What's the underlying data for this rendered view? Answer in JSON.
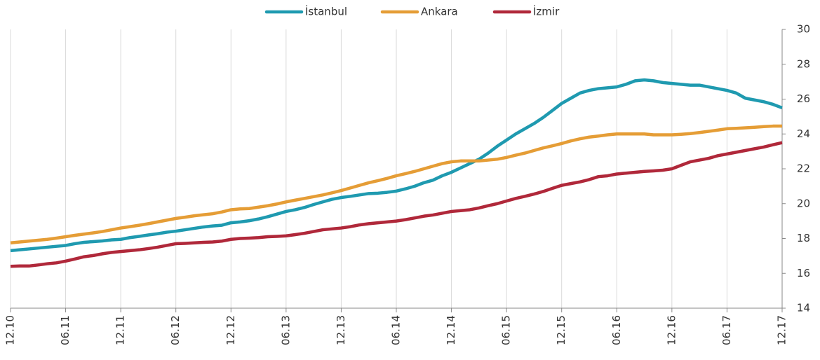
{
  "chart_data": {
    "type": "line",
    "categories": [
      "12.10",
      null,
      null,
      null,
      null,
      null,
      "06.11",
      null,
      null,
      null,
      null,
      null,
      "12.11",
      null,
      null,
      null,
      null,
      null,
      "06.12",
      null,
      null,
      null,
      null,
      null,
      "12.12",
      null,
      null,
      null,
      null,
      null,
      "06.13",
      null,
      null,
      null,
      null,
      null,
      "12.13",
      null,
      null,
      null,
      null,
      null,
      "06.14",
      null,
      null,
      null,
      null,
      null,
      "12.14",
      null,
      null,
      null,
      null,
      null,
      "06.15",
      null,
      null,
      null,
      null,
      null,
      "12.15",
      null,
      null,
      null,
      null,
      null,
      "06.16",
      null,
      null,
      null,
      null,
      null,
      "12.16",
      null,
      null,
      null,
      null,
      null,
      "06.17",
      null,
      null,
      null,
      null,
      null,
      "12.17"
    ],
    "series": [
      {
        "name": "İstanbul",
        "color": "#1f9ab0",
        "values": [
          17.3,
          17.35,
          17.4,
          17.45,
          17.5,
          17.55,
          17.6,
          17.7,
          17.78,
          17.82,
          17.86,
          17.92,
          17.95,
          18.05,
          18.12,
          18.2,
          18.27,
          18.36,
          18.42,
          18.5,
          18.58,
          18.66,
          18.72,
          18.76,
          18.9,
          18.95,
          19.02,
          19.12,
          19.25,
          19.4,
          19.55,
          19.65,
          19.78,
          19.95,
          20.1,
          20.25,
          20.35,
          20.42,
          20.5,
          20.58,
          20.6,
          20.65,
          20.72,
          20.85,
          21.0,
          21.2,
          21.35,
          21.6,
          21.8,
          22.05,
          22.3,
          22.55,
          22.9,
          23.3,
          23.65,
          24.0,
          24.3,
          24.6,
          24.95,
          25.35,
          25.75,
          26.05,
          26.35,
          26.5,
          26.6,
          26.65,
          26.7,
          26.85,
          27.05,
          27.1,
          27.05,
          26.95,
          26.9,
          26.85,
          26.8,
          26.8,
          26.7,
          26.6,
          26.5,
          26.35,
          26.05,
          25.95,
          25.85,
          25.7,
          25.5
        ]
      },
      {
        "name": "Ankara",
        "color": "#e59d36",
        "values": [
          17.75,
          17.8,
          17.85,
          17.9,
          17.95,
          18.02,
          18.1,
          18.18,
          18.25,
          18.32,
          18.4,
          18.5,
          18.6,
          18.68,
          18.76,
          18.85,
          18.95,
          19.05,
          19.15,
          19.22,
          19.3,
          19.36,
          19.42,
          19.52,
          19.65,
          19.7,
          19.72,
          19.8,
          19.88,
          19.98,
          20.1,
          20.2,
          20.3,
          20.4,
          20.5,
          20.62,
          20.75,
          20.9,
          21.05,
          21.2,
          21.32,
          21.45,
          21.6,
          21.72,
          21.85,
          22.0,
          22.15,
          22.3,
          22.4,
          22.45,
          22.45,
          22.45,
          22.5,
          22.55,
          22.65,
          22.78,
          22.9,
          23.05,
          23.2,
          23.32,
          23.45,
          23.6,
          23.72,
          23.82,
          23.88,
          23.95,
          24.0,
          24.0,
          24.0,
          24.0,
          23.95,
          23.95,
          23.95,
          23.98,
          24.02,
          24.08,
          24.15,
          24.22,
          24.3,
          24.32,
          24.35,
          24.38,
          24.42,
          24.45,
          24.45
        ]
      },
      {
        "name": "İzmir",
        "color": "#b0283a",
        "values": [
          16.4,
          16.42,
          16.42,
          16.48,
          16.55,
          16.6,
          16.7,
          16.82,
          16.95,
          17.02,
          17.12,
          17.2,
          17.25,
          17.3,
          17.35,
          17.42,
          17.5,
          17.6,
          17.7,
          17.72,
          17.75,
          17.78,
          17.8,
          17.85,
          17.95,
          18.0,
          18.02,
          18.05,
          18.1,
          18.12,
          18.15,
          18.22,
          18.3,
          18.4,
          18.5,
          18.55,
          18.6,
          18.68,
          18.78,
          18.85,
          18.9,
          18.95,
          19.0,
          19.08,
          19.18,
          19.28,
          19.35,
          19.45,
          19.55,
          19.6,
          19.65,
          19.75,
          19.88,
          20.0,
          20.15,
          20.3,
          20.42,
          20.55,
          20.7,
          20.88,
          21.05,
          21.15,
          21.25,
          21.38,
          21.55,
          21.6,
          21.7,
          21.75,
          21.8,
          21.85,
          21.88,
          21.92,
          22.0,
          22.2,
          22.4,
          22.5,
          22.6,
          22.75,
          22.85,
          22.95,
          23.05,
          23.15,
          23.25,
          23.38,
          23.5
        ]
      }
    ],
    "ylim": [
      14,
      30
    ],
    "yticks": [
      14,
      16,
      18,
      20,
      22,
      24,
      26,
      28,
      30
    ],
    "grid": true,
    "legend": "top"
  }
}
